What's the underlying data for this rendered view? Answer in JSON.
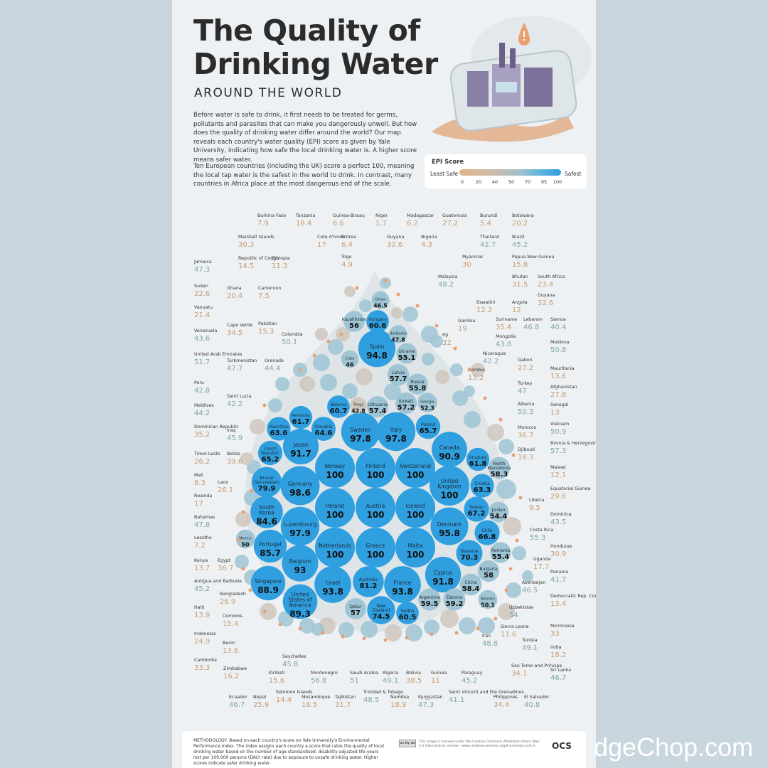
{
  "header": {
    "title": "The Quality of Drinking Water",
    "subtitle": "AROUND THE WORLD",
    "intro_1": "Before water is safe to drink, it first needs to be treated for germs, pollutants and parasites that can make you dangerously unwell. But how does the quality of drinking water differ around the world? Our map reveals each country's water quality (EPI) score as given by Yale University, indicating how safe the local drinking water is. A higher score means safer water.",
    "intro_2": "Ten European countries (including the UK) score a perfect 100, meaning the local tap water is the safest in the world to drink. In contrast, many countries in Africa place at the most dangerous end of the scale."
  },
  "legend": {
    "title": "EPI Score",
    "least": "Least Safe",
    "most": "Safest",
    "ticks": [
      "0",
      "20",
      "40",
      "50",
      "70",
      "95",
      "100"
    ]
  },
  "colors": {
    "low_text": "#c79a6f",
    "mid_text": "#7fa3ad",
    "bubble_high": "#2f9fe0",
    "bubble_mid": "#9fc4d3",
    "bubble_low": "#cfc7bd",
    "dot": "#e8a070"
  },
  "chart_data": {
    "type": "bubble",
    "title": "The Quality of Drinking Water",
    "measure": "EPI Score",
    "countries": [
      {
        "name": "Norway",
        "value": 100
      },
      {
        "name": "Finland",
        "value": 100
      },
      {
        "name": "Switzerland",
        "value": 100
      },
      {
        "name": "Ireland",
        "value": 100
      },
      {
        "name": "Austria",
        "value": 100
      },
      {
        "name": "Iceland",
        "value": 100
      },
      {
        "name": "Netherlands",
        "value": 100
      },
      {
        "name": "Greece",
        "value": 100
      },
      {
        "name": "Malta",
        "value": 100
      },
      {
        "name": "United Kingdom",
        "value": 100
      },
      {
        "name": "Germany",
        "value": 98.6
      },
      {
        "name": "Sweden",
        "value": 97.8
      },
      {
        "name": "Italy",
        "value": 97.8
      },
      {
        "name": "Luxembourg",
        "value": 97.9
      },
      {
        "name": "Denmark",
        "value": 95.8
      },
      {
        "name": "Spain",
        "value": 94.8
      },
      {
        "name": "Israel",
        "value": 93.8
      },
      {
        "name": "France",
        "value": 93.8
      },
      {
        "name": "Belgium",
        "value": 93
      },
      {
        "name": "Cyprus",
        "value": 91.8
      },
      {
        "name": "Japan",
        "value": 91.7
      },
      {
        "name": "Canada",
        "value": 90.9
      },
      {
        "name": "United States of America",
        "value": 89.3
      },
      {
        "name": "Singapore",
        "value": 88.9
      },
      {
        "name": "Portugal",
        "value": 85.7
      },
      {
        "name": "South Korea",
        "value": 84.6
      },
      {
        "name": "Australia",
        "value": 81.2
      },
      {
        "name": "Brunei Darussalam",
        "value": 79.9
      },
      {
        "name": "New Zealand",
        "value": 74.5
      },
      {
        "name": "Slovenia",
        "value": 70.3
      },
      {
        "name": "Taiwan",
        "value": 67.2
      },
      {
        "name": "Chile",
        "value": 66.8
      },
      {
        "name": "Poland",
        "value": 65.7
      },
      {
        "name": "Czech Republic",
        "value": 65.2
      },
      {
        "name": "Slovakia",
        "value": 64.6
      },
      {
        "name": "Mauritius",
        "value": 63.6
      },
      {
        "name": "Croatia",
        "value": 63.3
      },
      {
        "name": "Uruguay",
        "value": 61.8
      },
      {
        "name": "Armenia",
        "value": 61.7
      },
      {
        "name": "Belarus",
        "value": 60.7
      },
      {
        "name": "Hungary",
        "value": 60.6
      },
      {
        "name": "Serbia",
        "value": 60.5
      },
      {
        "name": "Argentina",
        "value": 59.5
      },
      {
        "name": "Estonia",
        "value": 59.2
      },
      {
        "name": "China",
        "value": 58.4
      },
      {
        "name": "North Macedonia",
        "value": 58.3
      },
      {
        "name": "Bulgaria",
        "value": 58
      },
      {
        "name": "Latvia",
        "value": 57.7
      },
      {
        "name": "Lithuania",
        "value": 57.4
      },
      {
        "name": "Kuwait",
        "value": 57.2
      },
      {
        "name": "Qatar",
        "value": 57
      },
      {
        "name": "Kazakhstan",
        "value": 56
      },
      {
        "name": "Russia",
        "value": 55.8
      },
      {
        "name": "Romania",
        "value": 55.4
      },
      {
        "name": "Ukraine",
        "value": 55.1
      },
      {
        "name": "Jordan",
        "value": 54.4
      },
      {
        "name": "Georgia",
        "value": 52.3
      },
      {
        "name": "Bahrain",
        "value": 50.1
      },
      {
        "name": "Mexico",
        "value": 50
      },
      {
        "name": "Barbados",
        "value": 47.8
      },
      {
        "name": "Oman",
        "value": 46.5
      },
      {
        "name": "Cuba",
        "value": 46
      },
      {
        "name": "Tonga",
        "value": 42.8
      },
      {
        "name": "Burkina Faso",
        "value": 7.9
      },
      {
        "name": "Tanzania",
        "value": 18.4
      },
      {
        "name": "Guinea-Bissau",
        "value": 6.6
      },
      {
        "name": "Niger",
        "value": 1.7
      },
      {
        "name": "Madagascar",
        "value": 6.2
      },
      {
        "name": "Guatemala",
        "value": 27.2
      },
      {
        "name": "Burundi",
        "value": 5.4
      },
      {
        "name": "Botswana",
        "value": 20.2
      },
      {
        "name": "Marshall Islands",
        "value": 30.3
      },
      {
        "name": "Cote d'Ivoire",
        "value": 17
      },
      {
        "name": "Eritrea",
        "value": 6.4
      },
      {
        "name": "Guyana",
        "value": 32.6
      },
      {
        "name": "Nigeria",
        "value": 4.3
      },
      {
        "name": "Thailand",
        "value": 42.7
      },
      {
        "name": "Brazil",
        "value": 45.2
      },
      {
        "name": "Republic of Congo",
        "value": 14.5
      },
      {
        "name": "Ethiopia",
        "value": 11.3
      },
      {
        "name": "Togo",
        "value": 4.9
      },
      {
        "name": "Myanmar",
        "value": 30
      },
      {
        "name": "Papua New Guinea",
        "value": 15.8
      },
      {
        "name": "Jamaica",
        "value": 47.3
      },
      {
        "name": "Malaysia",
        "value": 48.2
      },
      {
        "name": "Bhutan",
        "value": 31.5
      },
      {
        "name": "South Africa",
        "value": 23.4
      },
      {
        "name": "Sudan",
        "value": 22.6
      },
      {
        "name": "Ghana",
        "value": 20.4
      },
      {
        "name": "Cameroon",
        "value": 7.5
      },
      {
        "name": "Eswatini",
        "value": 12.2
      },
      {
        "name": "Angola",
        "value": 12
      },
      {
        "name": "Vanuatu",
        "value": 21.4
      },
      {
        "name": "Gambia",
        "value": 19
      },
      {
        "name": "Suriname",
        "value": 35.4
      },
      {
        "name": "Lebanon",
        "value": 46.8
      },
      {
        "name": "Samoa",
        "value": 40.4
      },
      {
        "name": "Pakistan",
        "value": 15.3
      },
      {
        "name": "Fiji",
        "value": 32
      },
      {
        "name": "Venezuela",
        "value": 43.6
      },
      {
        "name": "Cape Verde",
        "value": 34.5
      },
      {
        "name": "Colombia",
        "value": 50.1
      },
      {
        "name": "Mongolia",
        "value": 43.8
      },
      {
        "name": "Moldova",
        "value": 50.8
      },
      {
        "name": "Nicaragua",
        "value": 42.2
      },
      {
        "name": "United Arab Emirates",
        "value": 51.7
      },
      {
        "name": "Turkmenistan",
        "value": 47.7
      },
      {
        "name": "Grenada",
        "value": 44.4
      },
      {
        "name": "Gabon",
        "value": 27.2
      },
      {
        "name": "Mauritania",
        "value": 13.6
      },
      {
        "name": "Zambia",
        "value": 13.2
      },
      {
        "name": "Peru",
        "value": 42.8
      },
      {
        "name": "Turkey",
        "value": 47
      },
      {
        "name": "Afghanistan",
        "value": 27.8
      },
      {
        "name": "Saint Lucia",
        "value": 42.2
      },
      {
        "name": "Albania",
        "value": 50.3
      },
      {
        "name": "Senegal",
        "value": 13
      },
      {
        "name": "Maldives",
        "value": 44.2
      },
      {
        "name": "Dominican Republic",
        "value": 35.2
      },
      {
        "name": "Iraq",
        "value": 45.9
      },
      {
        "name": "Morocco",
        "value": 36.7
      },
      {
        "name": "Vietnam",
        "value": 50.9
      },
      {
        "name": "Timor-Leste",
        "value": 26.2
      },
      {
        "name": "Belize",
        "value": 39.6
      },
      {
        "name": "Djibouti",
        "value": 18.3
      },
      {
        "name": "Bosnia & Herzegovina",
        "value": 57.3
      },
      {
        "name": "Mali",
        "value": 8.3
      },
      {
        "name": "Laos",
        "value": 26.1
      },
      {
        "name": "Malawi",
        "value": 12.1
      },
      {
        "name": "Rwanda",
        "value": 17
      },
      {
        "name": "Equatorial Guinea",
        "value": 29.6
      },
      {
        "name": "Liberia",
        "value": 9.5
      },
      {
        "name": "Bahamas",
        "value": 47.8
      },
      {
        "name": "Dominica",
        "value": 43.5
      },
      {
        "name": "Lesotho",
        "value": 7.2
      },
      {
        "name": "Costa Rica",
        "value": 55.3
      },
      {
        "name": "Honduras",
        "value": 30.9
      },
      {
        "name": "Kenya",
        "value": 13.7
      },
      {
        "name": "Egypt",
        "value": 36.7
      },
      {
        "name": "Uganda",
        "value": 17.7
      },
      {
        "name": "Antigua and Barbuda",
        "value": 45.2
      },
      {
        "name": "Panama",
        "value": 41.7
      },
      {
        "name": "Azerbaijan",
        "value": 46.5
      },
      {
        "name": "Bangladesh",
        "value": 26.9
      },
      {
        "name": "Democratic Rep. Congo",
        "value": 13.4
      },
      {
        "name": "Haiti",
        "value": 13.9
      },
      {
        "name": "Comoros",
        "value": 15.4
      },
      {
        "name": "Uzbekistan",
        "value": 54
      },
      {
        "name": "Micronesia",
        "value": 33
      },
      {
        "name": "Sierra Leone",
        "value": 11.6
      },
      {
        "name": "Indonesia",
        "value": 24.9
      },
      {
        "name": "Benin",
        "value": 13.6
      },
      {
        "name": "Iran",
        "value": 48.8
      },
      {
        "name": "Tunisia",
        "value": 49.1
      },
      {
        "name": "India",
        "value": 18.2
      },
      {
        "name": "Seychelles",
        "value": 45.8
      },
      {
        "name": "Cambodia",
        "value": 33.3
      },
      {
        "name": "Zimbabwe",
        "value": 16.2
      },
      {
        "name": "Kiribati",
        "value": 15.6
      },
      {
        "name": "Montenegro",
        "value": 56.8
      },
      {
        "name": "Saudi Arabia",
        "value": 51
      },
      {
        "name": "Algeria",
        "value": 49.1
      },
      {
        "name": "Bolivia",
        "value": 38.5
      },
      {
        "name": "Guinea",
        "value": 11
      },
      {
        "name": "Paraguay",
        "value": 45.2
      },
      {
        "name": "Sao Tome and Principe",
        "value": 34.1
      },
      {
        "name": "Sri Lanka",
        "value": 46.7
      },
      {
        "name": "Ecuador",
        "value": 46.7
      },
      {
        "name": "Nepal",
        "value": 25.9
      },
      {
        "name": "Solomon Islands",
        "value": 14.4
      },
      {
        "name": "Mozambique",
        "value": 16.5
      },
      {
        "name": "Tajikistan",
        "value": 31.7
      },
      {
        "name": "Trinidad & Tobago",
        "value": 48.5
      },
      {
        "name": "Namibia",
        "value": 18.9
      },
      {
        "name": "Kyrgyzstan",
        "value": 47.3
      },
      {
        "name": "Saint Vincent and the Grenadines",
        "value": 41.1
      },
      {
        "name": "Philippines",
        "value": 34.4
      },
      {
        "name": "El Salvador",
        "value": 40.8
      }
    ]
  },
  "footer": {
    "methodology": "METHODOLOGY: Based on each country's score on Yale University's Environmental Performance Index. The index assigns each country a score that rates the quality of local drinking water based on the number of age-standardised, disability-adjusted life-years lost per 100,000 persons (DALY rate) due to exposure to unsafe drinking water. Higher scores indicate safer drinking water.",
    "license": "This image is licensed under the Creative Commons Attribution-Share Alike 4.0 International License - www.creativecommons.org/licenses/by-sa/4.0",
    "cc": "cc by sa",
    "logo": "OCS",
    "watermark": "dgeChop.com"
  }
}
